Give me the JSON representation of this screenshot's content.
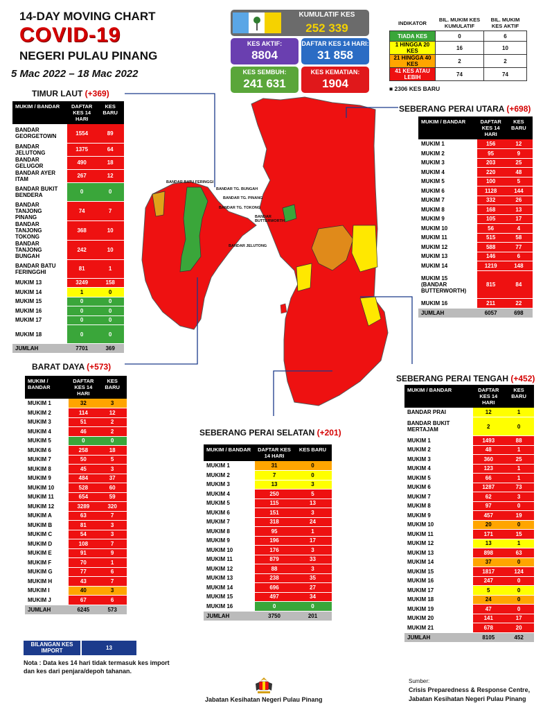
{
  "header": {
    "line1": "14-DAY MOVING CHART",
    "line2": "COVID-19",
    "line3": "NEGERI PULAU PINANG",
    "dates": "5 Mac 2022 – 18 Mac 2022"
  },
  "summary": {
    "kumulatif_label": "KUMULATIF KES",
    "kumulatif_value": "252 339",
    "aktif_label": "KES AKTIF:",
    "aktif_value": "8804",
    "daftar_label": "DAFTAR KES 14 HARI:",
    "daftar_value": "31 858",
    "sembuh_label": "KES SEMBUH:",
    "sembuh_value": "241 631",
    "kematian_label": "KES KEMATIAN:",
    "kematian_value": "1904"
  },
  "indikator": {
    "h1": "INDIKATOR",
    "h2": "BIL. MUKIM KES KUMULATIF",
    "h3": "BIL. MUKIM KES AKTIF",
    "rows": [
      {
        "label": "TIADA KES",
        "a": "0",
        "b": "6",
        "color": "#3aa63a"
      },
      {
        "label": "1 HINGGA 20 KES",
        "a": "16",
        "b": "10",
        "color": "#ffff00"
      },
      {
        "label": "21 HINGGA 40 KES",
        "a": "2",
        "b": "2",
        "color": "#ffa500"
      },
      {
        "label": "41 KES ATAU LEBIH",
        "a": "74",
        "b": "74",
        "color": "#ee1111"
      }
    ],
    "baru": "2306 KES BARU"
  },
  "colors": {
    "green": "#3aa63a",
    "yellow": "#ffff00",
    "orange": "#ffa500",
    "red": "#ee1111"
  },
  "timur_laut": {
    "title": "TIMUR LAUT",
    "plus": "(+369)",
    "h1": "MUKIM / BANDAR",
    "h2": "DAFTAR KES 14 HARI",
    "h3": "KES BARU",
    "rows": [
      {
        "name": "BANDAR GEORGETOWN",
        "a": "1554",
        "b": "89",
        "ca": "r",
        "cb": "r",
        "h": 2
      },
      {
        "name": "BANDAR JELUTONG",
        "a": "1375",
        "b": "64",
        "ca": "r",
        "cb": "r",
        "h": 1
      },
      {
        "name": "BANDAR GELUGOR",
        "a": "490",
        "b": "18",
        "ca": "r",
        "cb": "r",
        "h": 1
      },
      {
        "name": "BANDAR AYER ITAM",
        "a": "267",
        "b": "12",
        "ca": "r",
        "cb": "r",
        "h": 1
      },
      {
        "name": "BANDAR BUKIT BENDERA",
        "a": "0",
        "b": "0",
        "ca": "g",
        "cb": "g",
        "h": 2
      },
      {
        "name": "BANDAR TANJONG PINANG",
        "a": "74",
        "b": "7",
        "ca": "r",
        "cb": "r",
        "h": 2
      },
      {
        "name": "BANDAR TANJONG TOKONG",
        "a": "368",
        "b": "10",
        "ca": "r",
        "cb": "r",
        "h": 2
      },
      {
        "name": "BANDAR TANJONG BUNGAH",
        "a": "242",
        "b": "10",
        "ca": "r",
        "cb": "r",
        "h": 2
      },
      {
        "name": "BANDAR BATU FERINGGHI",
        "a": "81",
        "b": "1",
        "ca": "r",
        "cb": "r",
        "h": 2
      },
      {
        "name": "MUKIM 13",
        "a": "3249",
        "b": "158",
        "ca": "r",
        "cb": "r",
        "h": 1
      },
      {
        "name": "MUKIM 14",
        "a": "1",
        "b": "0",
        "ca": "y",
        "cb": "y",
        "h": 1
      },
      {
        "name": "MUKIM 15",
        "a": "0",
        "b": "0",
        "ca": "g",
        "cb": "g",
        "h": 1
      },
      {
        "name": "MUKIM 16",
        "a": "0",
        "b": "0",
        "ca": "g",
        "cb": "g",
        "h": 1
      },
      {
        "name": "MUKIM 17",
        "a": "0",
        "b": "0",
        "ca": "g",
        "cb": "g",
        "h": 1
      },
      {
        "name": "MUKIM 18",
        "a": "0",
        "b": "0",
        "ca": "g",
        "cb": "g",
        "h": 2
      }
    ],
    "total_label": "JUMLAH",
    "total_a": "7701",
    "total_b": "369"
  },
  "barat_daya": {
    "title": "BARAT DAYA",
    "plus": "(+573)",
    "h1": "MUKIM / BANDAR",
    "h2": "DAFTAR KES 14 HARI",
    "h3": "KES BARU",
    "rows": [
      {
        "name": "MUKIM 1",
        "a": "32",
        "b": "3",
        "ca": "o",
        "cb": "o"
      },
      {
        "name": "MUKIM 2",
        "a": "114",
        "b": "12",
        "ca": "r",
        "cb": "r"
      },
      {
        "name": "MUKIM 3",
        "a": "51",
        "b": "2",
        "ca": "r",
        "cb": "r"
      },
      {
        "name": "MUKIM 4",
        "a": "46",
        "b": "2",
        "ca": "r",
        "cb": "r"
      },
      {
        "name": "MUKIM 5",
        "a": "0",
        "b": "0",
        "ca": "g",
        "cb": "g"
      },
      {
        "name": "MUKIM 6",
        "a": "258",
        "b": "18",
        "ca": "r",
        "cb": "r"
      },
      {
        "name": "MUKIM 7",
        "a": "50",
        "b": "5",
        "ca": "r",
        "cb": "r"
      },
      {
        "name": "MUKIM 8",
        "a": "45",
        "b": "3",
        "ca": "r",
        "cb": "r"
      },
      {
        "name": "MUKIM 9",
        "a": "484",
        "b": "37",
        "ca": "r",
        "cb": "r"
      },
      {
        "name": "MUKIM 10",
        "a": "528",
        "b": "60",
        "ca": "r",
        "cb": "r"
      },
      {
        "name": "MUKIM 11",
        "a": "654",
        "b": "59",
        "ca": "r",
        "cb": "r"
      },
      {
        "name": "MUKIM 12",
        "a": "3289",
        "b": "320",
        "ca": "r",
        "cb": "r"
      },
      {
        "name": "MUKIM A",
        "a": "63",
        "b": "7",
        "ca": "r",
        "cb": "r"
      },
      {
        "name": "MUKIM B",
        "a": "81",
        "b": "3",
        "ca": "r",
        "cb": "r"
      },
      {
        "name": "MUKIM C",
        "a": "54",
        "b": "3",
        "ca": "r",
        "cb": "r"
      },
      {
        "name": "MUKIM D",
        "a": "108",
        "b": "7",
        "ca": "r",
        "cb": "r"
      },
      {
        "name": "MUKIM E",
        "a": "91",
        "b": "9",
        "ca": "r",
        "cb": "r"
      },
      {
        "name": "MUKIM F",
        "a": "70",
        "b": "1",
        "ca": "r",
        "cb": "r"
      },
      {
        "name": "MUKIM G",
        "a": "77",
        "b": "6",
        "ca": "r",
        "cb": "r"
      },
      {
        "name": "MUKIM H",
        "a": "43",
        "b": "7",
        "ca": "r",
        "cb": "r"
      },
      {
        "name": "MUKIM I",
        "a": "40",
        "b": "3",
        "ca": "o",
        "cb": "o"
      },
      {
        "name": "MUKIM J",
        "a": "67",
        "b": "6",
        "ca": "r",
        "cb": "r"
      }
    ],
    "total_label": "JUMLAH",
    "total_a": "6245",
    "total_b": "573"
  },
  "spu": {
    "title": "SEBERANG PERAI UTARA",
    "plus": "(+698)",
    "h1": "MUKIM / BANDAR",
    "h2": "DAFTAR KES 14 HARI",
    "h3": "KES BARU",
    "rows": [
      {
        "name": "MUKIM 1",
        "a": "156",
        "b": "12",
        "ca": "r",
        "cb": "r",
        "h": 1
      },
      {
        "name": "MUKIM 2",
        "a": "95",
        "b": "9",
        "ca": "r",
        "cb": "r",
        "h": 1
      },
      {
        "name": "MUKIM 3",
        "a": "203",
        "b": "25",
        "ca": "r",
        "cb": "r",
        "h": 1
      },
      {
        "name": "MUKIM 4",
        "a": "220",
        "b": "48",
        "ca": "r",
        "cb": "r",
        "h": 1
      },
      {
        "name": "MUKIM 5",
        "a": "100",
        "b": "5",
        "ca": "r",
        "cb": "r",
        "h": 1
      },
      {
        "name": "MUKIM 6",
        "a": "1128",
        "b": "144",
        "ca": "r",
        "cb": "r",
        "h": 1
      },
      {
        "name": "MUKIM 7",
        "a": "332",
        "b": "26",
        "ca": "r",
        "cb": "r",
        "h": 1
      },
      {
        "name": "MUKIM 8",
        "a": "168",
        "b": "13",
        "ca": "r",
        "cb": "r",
        "h": 1
      },
      {
        "name": "MUKIM 9",
        "a": "105",
        "b": "17",
        "ca": "r",
        "cb": "r",
        "h": 1
      },
      {
        "name": "MUKIM 10",
        "a": "56",
        "b": "4",
        "ca": "r",
        "cb": "r",
        "h": 1
      },
      {
        "name": "MUKIM 11",
        "a": "515",
        "b": "58",
        "ca": "r",
        "cb": "r",
        "h": 1
      },
      {
        "name": "MUKIM 12",
        "a": "588",
        "b": "77",
        "ca": "r",
        "cb": "r",
        "h": 1
      },
      {
        "name": "MUKIM 13",
        "a": "146",
        "b": "6",
        "ca": "r",
        "cb": "r",
        "h": 1
      },
      {
        "name": "MUKIM 14",
        "a": "1219",
        "b": "148",
        "ca": "r",
        "cb": "r",
        "h": 1
      },
      {
        "name": "MUKIM 15 (BANDAR BUTTERWORTH)",
        "a": "815",
        "b": "84",
        "ca": "r",
        "cb": "r",
        "h": 3
      },
      {
        "name": "MUKIM 16",
        "a": "211",
        "b": "22",
        "ca": "r",
        "cb": "r",
        "h": 1
      }
    ],
    "total_label": "JUMLAH",
    "total_a": "6057",
    "total_b": "698"
  },
  "sps": {
    "title": "SEBERANG PERAI SELATAN",
    "plus": "(+201)",
    "h1": "MUKIM / BANDAR",
    "h2": "DAFTAR KES 14 HARI",
    "h3": "KES BARU",
    "rows": [
      {
        "name": "MUKIM 1",
        "a": "31",
        "b": "0",
        "ca": "o",
        "cb": "o"
      },
      {
        "name": "MUKIM 2",
        "a": "7",
        "b": "0",
        "ca": "y",
        "cb": "y"
      },
      {
        "name": "MUKIM 3",
        "a": "13",
        "b": "3",
        "ca": "y",
        "cb": "y"
      },
      {
        "name": "MUKIM 4",
        "a": "250",
        "b": "5",
        "ca": "r",
        "cb": "r"
      },
      {
        "name": "MUKIM 5",
        "a": "115",
        "b": "13",
        "ca": "r",
        "cb": "r"
      },
      {
        "name": "MUKIM 6",
        "a": "151",
        "b": "3",
        "ca": "r",
        "cb": "r"
      },
      {
        "name": "MUKIM 7",
        "a": "318",
        "b": "24",
        "ca": "r",
        "cb": "r"
      },
      {
        "name": "MUKIM 8",
        "a": "95",
        "b": "1",
        "ca": "r",
        "cb": "r"
      },
      {
        "name": "MUKIM 9",
        "a": "196",
        "b": "17",
        "ca": "r",
        "cb": "r"
      },
      {
        "name": "MUKIM 10",
        "a": "176",
        "b": "3",
        "ca": "r",
        "cb": "r"
      },
      {
        "name": "MUKIM 11",
        "a": "879",
        "b": "33",
        "ca": "r",
        "cb": "r"
      },
      {
        "name": "MUKIM 12",
        "a": "88",
        "b": "3",
        "ca": "r",
        "cb": "r"
      },
      {
        "name": "MUKIM 13",
        "a": "238",
        "b": "35",
        "ca": "r",
        "cb": "r"
      },
      {
        "name": "MUKIM 14",
        "a": "696",
        "b": "27",
        "ca": "r",
        "cb": "r"
      },
      {
        "name": "MUKIM 15",
        "a": "497",
        "b": "34",
        "ca": "r",
        "cb": "r"
      },
      {
        "name": "MUKIM 16",
        "a": "0",
        "b": "0",
        "ca": "g",
        "cb": "g"
      }
    ],
    "total_label": "JUMLAH",
    "total_a": "3750",
    "total_b": "201"
  },
  "spt": {
    "title": "SEBERANG PERAI TENGAH",
    "plus": "(+452)",
    "h1": "MUKIM / BANDAR",
    "h2": "DAFTAR KES 14 HARI",
    "h3": "KES BARU",
    "rows": [
      {
        "name": "BANDAR PRAI",
        "a": "12",
        "b": "1",
        "ca": "y",
        "cb": "y",
        "h": 1
      },
      {
        "name": "BANDAR BUKIT MERTAJAM",
        "a": "2",
        "b": "0",
        "ca": "y",
        "cb": "y",
        "h": 2
      },
      {
        "name": "MUKIM 1",
        "a": "1493",
        "b": "88",
        "ca": "r",
        "cb": "r",
        "h": 1
      },
      {
        "name": "MUKIM 2",
        "a": "48",
        "b": "1",
        "ca": "r",
        "cb": "r",
        "h": 1
      },
      {
        "name": "MUKIM 3",
        "a": "360",
        "b": "25",
        "ca": "r",
        "cb": "r",
        "h": 1
      },
      {
        "name": "MUKIM 4",
        "a": "123",
        "b": "1",
        "ca": "r",
        "cb": "r",
        "h": 1
      },
      {
        "name": "MUKIM 5",
        "a": "66",
        "b": "1",
        "ca": "r",
        "cb": "r",
        "h": 1
      },
      {
        "name": "MUKIM 6",
        "a": "1287",
        "b": "73",
        "ca": "r",
        "cb": "r",
        "h": 1
      },
      {
        "name": "MUKIM 7",
        "a": "62",
        "b": "3",
        "ca": "r",
        "cb": "r",
        "h": 1
      },
      {
        "name": "MUKIM 8",
        "a": "97",
        "b": "0",
        "ca": "r",
        "cb": "r",
        "h": 1
      },
      {
        "name": "MUKIM 9",
        "a": "457",
        "b": "19",
        "ca": "r",
        "cb": "r",
        "h": 1
      },
      {
        "name": "MUKIM 10",
        "a": "20",
        "b": "0",
        "ca": "o",
        "cb": "o",
        "h": 1
      },
      {
        "name": "MUKIM 11",
        "a": "171",
        "b": "15",
        "ca": "r",
        "cb": "r",
        "h": 1
      },
      {
        "name": "MUKIM 12",
        "a": "13",
        "b": "1",
        "ca": "y",
        "cb": "y",
        "h": 1
      },
      {
        "name": "MUKIM 13",
        "a": "898",
        "b": "63",
        "ca": "r",
        "cb": "r",
        "h": 1
      },
      {
        "name": "MUKIM 14",
        "a": "37",
        "b": "0",
        "ca": "o",
        "cb": "o",
        "h": 1
      },
      {
        "name": "MUKIM 15",
        "a": "1817",
        "b": "124",
        "ca": "r",
        "cb": "r",
        "h": 1
      },
      {
        "name": "MUKIM 16",
        "a": "247",
        "b": "0",
        "ca": "r",
        "cb": "r",
        "h": 1
      },
      {
        "name": "MUKIM 17",
        "a": "5",
        "b": "0",
        "ca": "y",
        "cb": "y",
        "h": 1
      },
      {
        "name": "MUKIM 18",
        "a": "24",
        "b": "0",
        "ca": "o",
        "cb": "o",
        "h": 1
      },
      {
        "name": "MUKIM 19",
        "a": "47",
        "b": "0",
        "ca": "r",
        "cb": "r",
        "h": 1
      },
      {
        "name": "MUKIM 20",
        "a": "141",
        "b": "17",
        "ca": "r",
        "cb": "r",
        "h": 1
      },
      {
        "name": "MUKIM 21",
        "a": "678",
        "b": "20",
        "ca": "r",
        "cb": "r",
        "h": 1
      }
    ],
    "total_label": "JUMLAH",
    "total_a": "8105",
    "total_b": "452"
  },
  "import": {
    "label": "BILANGAN KES IMPORT",
    "value": "13"
  },
  "nota": "Nota : Data kes 14 hari tidak termasuk kes import dan kes dari penjara/depoh tahanan.",
  "footer": {
    "agency": "Jabatan Kesihatan Negeri Pulau Pinang",
    "sumber_label": "Sumber:",
    "sumber1": "Crisis Preparedness & Response Centre,",
    "sumber2": "Jabatan Kesihatan Negeri Pulau Pinang"
  },
  "map_labels": {
    "bandar_batu_feringgi": "BANDAR BATU FERINGGI",
    "bandar_tg_bungah": "BANDAR TG. BUNGAH",
    "bandar_tg_pinang": "BANDAR TG. PINANG",
    "bandar_tg_tokong": "BANDAR TG. TOKONG",
    "bandar_jelutong": "BANDAR JELUTONG",
    "bandar_butterworth": "BANDAR BUTTERWORTH"
  }
}
